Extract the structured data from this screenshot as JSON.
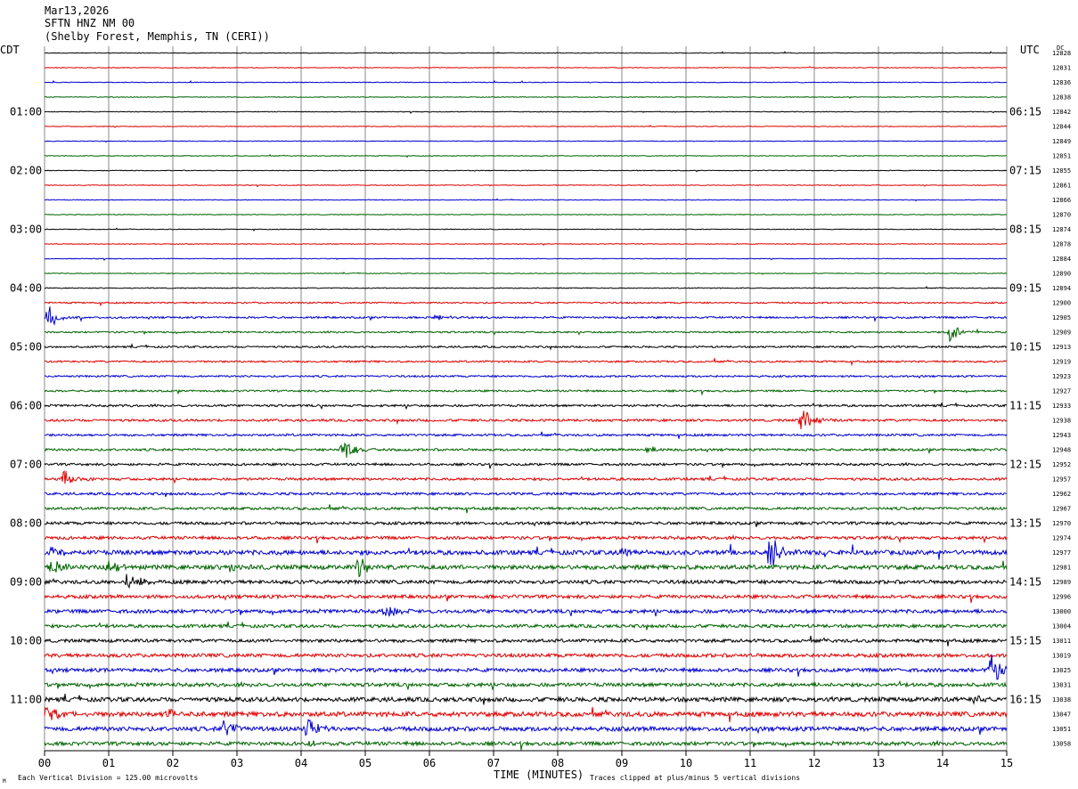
{
  "header": {
    "date": "Mar13,2026",
    "station": "SFTN HNZ NM 00",
    "location": "(Shelby Forest, Memphis, TN (CERI))"
  },
  "chart_data": {
    "type": "line",
    "title": "",
    "xlabel": "TIME (MINUTES)",
    "ylabel": "",
    "left_axis_label": "CDT",
    "right_axis_label": "UTC",
    "dc_label": "DC",
    "xlim": [
      0,
      15
    ],
    "x_tick_labels": [
      "00",
      "01",
      "02",
      "03",
      "04",
      "05",
      "06",
      "07",
      "08",
      "09",
      "10",
      "11",
      "12",
      "13",
      "14",
      "15"
    ],
    "left_time_labels": [
      "01:00",
      "02:00",
      "03:00",
      "04:00",
      "05:00",
      "06:00",
      "07:00",
      "08:00",
      "09:00",
      "10:00",
      "11:00"
    ],
    "right_time_labels": [
      "06:15",
      "07:15",
      "08:15",
      "09:15",
      "10:15",
      "11:15",
      "12:15",
      "13:15",
      "14:15",
      "15:15",
      "16:15"
    ],
    "dc_offsets": [
      "12828",
      "12831",
      "12836",
      "12838",
      "12842",
      "12844",
      "12849",
      "12851",
      "12855",
      "12861",
      "12866",
      "12870",
      "12874",
      "12878",
      "12884",
      "12890",
      "12894",
      "12900",
      "12905",
      "12909",
      "12913",
      "12919",
      "12923",
      "12927",
      "12933",
      "12938",
      "12943",
      "12948",
      "12952",
      "12957",
      "12962",
      "12967",
      "12970",
      "12974",
      "12977",
      "12981",
      "12989",
      "12996",
      "13000",
      "13004",
      "13011",
      "13019",
      "13025",
      "13031",
      "13038",
      "13047",
      "13051",
      "13058"
    ],
    "trace_colors": [
      "#000000",
      "#e00000",
      "#0000d0",
      "#006400"
    ],
    "noise_levels": [
      0.4,
      0.4,
      0.4,
      0.4,
      0.4,
      0.4,
      0.4,
      0.4,
      0.4,
      0.4,
      0.4,
      0.4,
      0.4,
      0.4,
      0.4,
      0.4,
      0.5,
      0.8,
      1.0,
      0.9,
      1.0,
      1.0,
      1.0,
      1.0,
      1.2,
      1.3,
      1.2,
      1.3,
      1.3,
      1.4,
      1.4,
      1.5,
      1.6,
      1.7,
      2.5,
      2.4,
      2.0,
      1.9,
      2.0,
      1.8,
      1.8,
      2.0,
      2.0,
      2.0,
      2.4,
      2.6,
      2.4,
      2.0
    ],
    "events": [
      {
        "trace": 18,
        "minute": 0.05,
        "amp": 6
      },
      {
        "trace": 18,
        "minute": 6.1,
        "amp": 1.5
      },
      {
        "trace": 19,
        "minute": 14.1,
        "amp": 5
      },
      {
        "trace": 25,
        "minute": 11.8,
        "amp": 7
      },
      {
        "trace": 27,
        "minute": 4.65,
        "amp": 6
      },
      {
        "trace": 27,
        "minute": 9.4,
        "amp": 2
      },
      {
        "trace": 29,
        "minute": 0.3,
        "amp": 4
      },
      {
        "trace": 34,
        "minute": 0.1,
        "amp": 3
      },
      {
        "trace": 34,
        "minute": 9.0,
        "amp": 3
      },
      {
        "trace": 34,
        "minute": 11.3,
        "amp": 9
      },
      {
        "trace": 35,
        "minute": 0.1,
        "amp": 4
      },
      {
        "trace": 35,
        "minute": 1.0,
        "amp": 3
      },
      {
        "trace": 35,
        "minute": 4.9,
        "amp": 5
      },
      {
        "trace": 35,
        "minute": 2.9,
        "amp": 2
      },
      {
        "trace": 36,
        "minute": 1.3,
        "amp": 6
      },
      {
        "trace": 38,
        "minute": 5.3,
        "amp": 3
      },
      {
        "trace": 42,
        "minute": 14.75,
        "amp": 9
      },
      {
        "trace": 44,
        "minute": 14.5,
        "amp": 2
      },
      {
        "trace": 45,
        "minute": 0.0,
        "amp": 5
      },
      {
        "trace": 45,
        "minute": 1.9,
        "amp": 3
      },
      {
        "trace": 46,
        "minute": 2.8,
        "amp": 4
      },
      {
        "trace": 46,
        "minute": 4.1,
        "amp": 5
      },
      {
        "trace": 47,
        "minute": 4.1,
        "amp": 2
      }
    ]
  },
  "footer": {
    "vertical_division": "Each Vertical Division =  125.00 microvolts",
    "clipping_note": "Traces clipped at plus/minus 5 vertical divisions",
    "corner_mark": "M"
  }
}
